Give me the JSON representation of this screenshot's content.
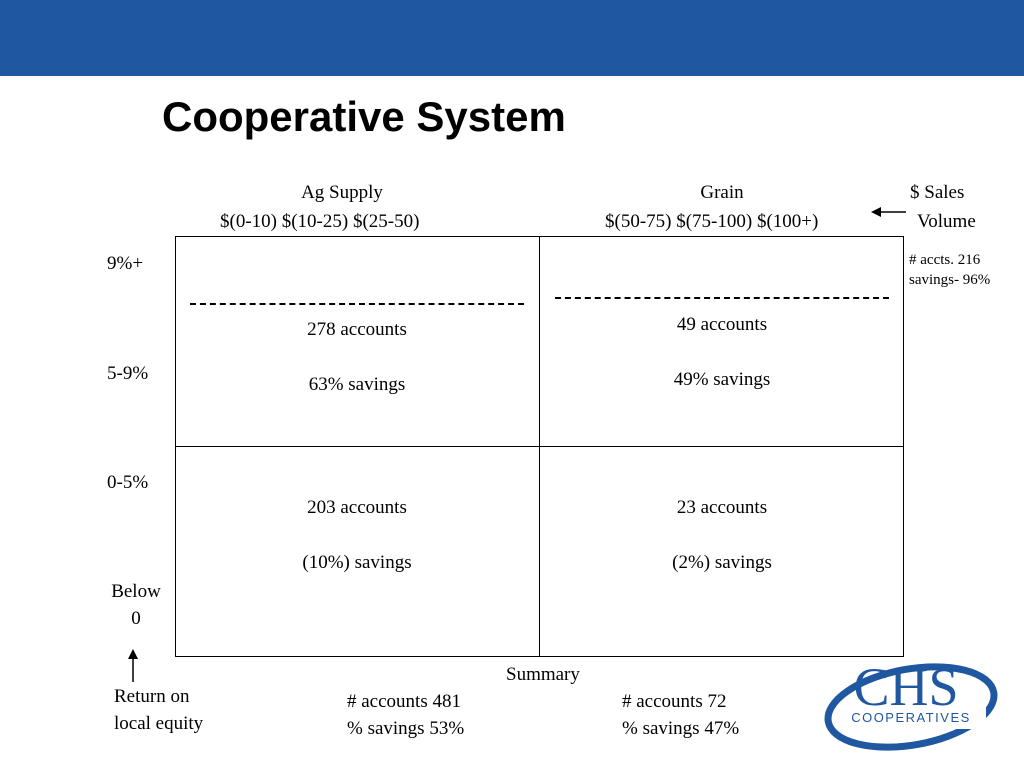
{
  "slide": {
    "title": "Cooperative System",
    "header_color": "#1f57a0"
  },
  "columns": {
    "ag_supply_label": "Ag Supply",
    "ag_supply_ranges": "$(0-10)  $(10-25)  $(25-50)",
    "grain_label": "Grain",
    "grain_ranges": "$(50-75)  $(75-100)  $(100+)",
    "axis_label_line1": "$   Sales",
    "axis_label_line2": "Volume"
  },
  "rows": {
    "r1": "9%+",
    "r2": "5-9%",
    "r3": "0-5%",
    "r4_line1": "Below",
    "r4_line2": "0",
    "axis_label_line1": "Return on",
    "axis_label_line2": "local equity"
  },
  "side_note": {
    "line1": "# accts. 216",
    "line2": "savings- 96%"
  },
  "cells": {
    "top_left": {
      "accounts": "278 accounts",
      "savings": "63% savings"
    },
    "top_right": {
      "accounts": "49 accounts",
      "savings": "49% savings"
    },
    "bottom_left": {
      "accounts": "203 accounts",
      "savings": "(10%) savings"
    },
    "bottom_right": {
      "accounts": "23 accounts",
      "savings": "(2%) savings"
    }
  },
  "summary": {
    "label": "Summary",
    "left_accounts": "# accounts  481",
    "left_savings": "% savings   53%",
    "right_accounts": "# accounts   72",
    "right_savings": "% savings   47%"
  },
  "logo": {
    "text_big": "CHS",
    "text_small": "COOPERATIVES",
    "color": "#1f57a0"
  }
}
